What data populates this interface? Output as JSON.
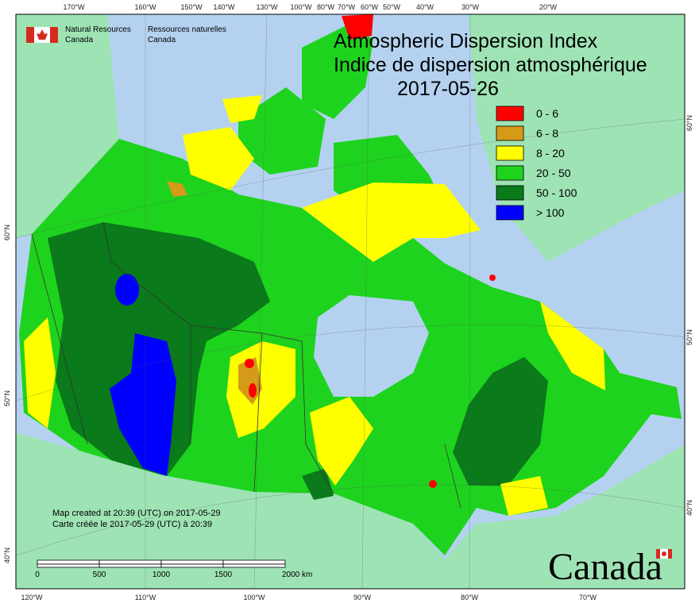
{
  "header": {
    "logo_en": [
      "Natural Resources",
      "Canada"
    ],
    "logo_fr": [
      "Ressources naturelles",
      "Canada"
    ]
  },
  "title": [
    "Atmospheric Dispersion Index",
    "Indice de dispersion atmosphérique",
    "2017-05-26"
  ],
  "legend": {
    "items": [
      {
        "label": "0 - 6",
        "color": "#ff0000"
      },
      {
        "label": "6 - 8",
        "color": "#d49a18"
      },
      {
        "label": "8 - 20",
        "color": "#ffff00"
      },
      {
        "label": "20 - 50",
        "color": "#1ed31e"
      },
      {
        "label": "50 - 100",
        "color": "#0a7a1a"
      },
      {
        "label": "> 100",
        "color": "#0000ff"
      }
    ]
  },
  "graticule": {
    "top": [
      "170°W",
      "160°W",
      "150°W",
      "140°W",
      "130°W",
      "100°W",
      "80°W",
      "70°W",
      "60°W",
      "50°W",
      "40°W",
      "30°W",
      "20°W"
    ],
    "bottom": [
      "120°W",
      "110°W",
      "100°W",
      "90°W",
      "80°W",
      "70°W"
    ],
    "left": [
      "60°N",
      "50°N",
      "40°N"
    ],
    "right": [
      "60°N",
      "50°N",
      "40°N"
    ]
  },
  "footer": [
    "Map created at 20:39 (UTC) on 2017-05-29",
    "Carte créée le 2017-05-29 (UTC) à 20:39"
  ],
  "scale_bar": [
    "0",
    "500",
    "1000",
    "1500",
    "2000 km"
  ],
  "wordmark": "Canada"
}
